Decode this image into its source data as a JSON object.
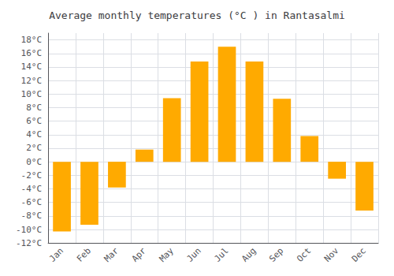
{
  "chart_data": {
    "type": "bar",
    "title": "Average monthly temperatures (°C ) in Rantasalmi",
    "categories": [
      "Jan",
      "Feb",
      "Mar",
      "Apr",
      "May",
      "Jun",
      "Jul",
      "Aug",
      "Sep",
      "Oct",
      "Nov",
      "Dec"
    ],
    "values": [
      -10.3,
      -9.3,
      -3.8,
      1.8,
      9.4,
      14.8,
      17.0,
      14.8,
      9.3,
      3.8,
      -2.5,
      -7.2
    ],
    "color": "#FFAA00",
    "ylim": [
      -12,
      19
    ],
    "yticks": [
      {
        "value": -12,
        "label": "-12°C"
      },
      {
        "value": -10,
        "label": "-10°C"
      },
      {
        "value": -8,
        "label": "-8°C"
      },
      {
        "value": -6,
        "label": "-6°C"
      },
      {
        "value": -4,
        "label": "-4°C"
      },
      {
        "value": -2,
        "label": "-2°C"
      },
      {
        "value": 0,
        "label": "0°C"
      },
      {
        "value": 2,
        "label": "2°C"
      },
      {
        "value": 4,
        "label": "4°C"
      },
      {
        "value": 6,
        "label": "6°C"
      },
      {
        "value": 8,
        "label": "8°C"
      },
      {
        "value": 10,
        "label": "10°C"
      },
      {
        "value": 12,
        "label": "12°C"
      },
      {
        "value": 14,
        "label": "14°C"
      },
      {
        "value": 16,
        "label": "16°C"
      },
      {
        "value": 18,
        "label": "18°C"
      }
    ],
    "grid": true
  }
}
